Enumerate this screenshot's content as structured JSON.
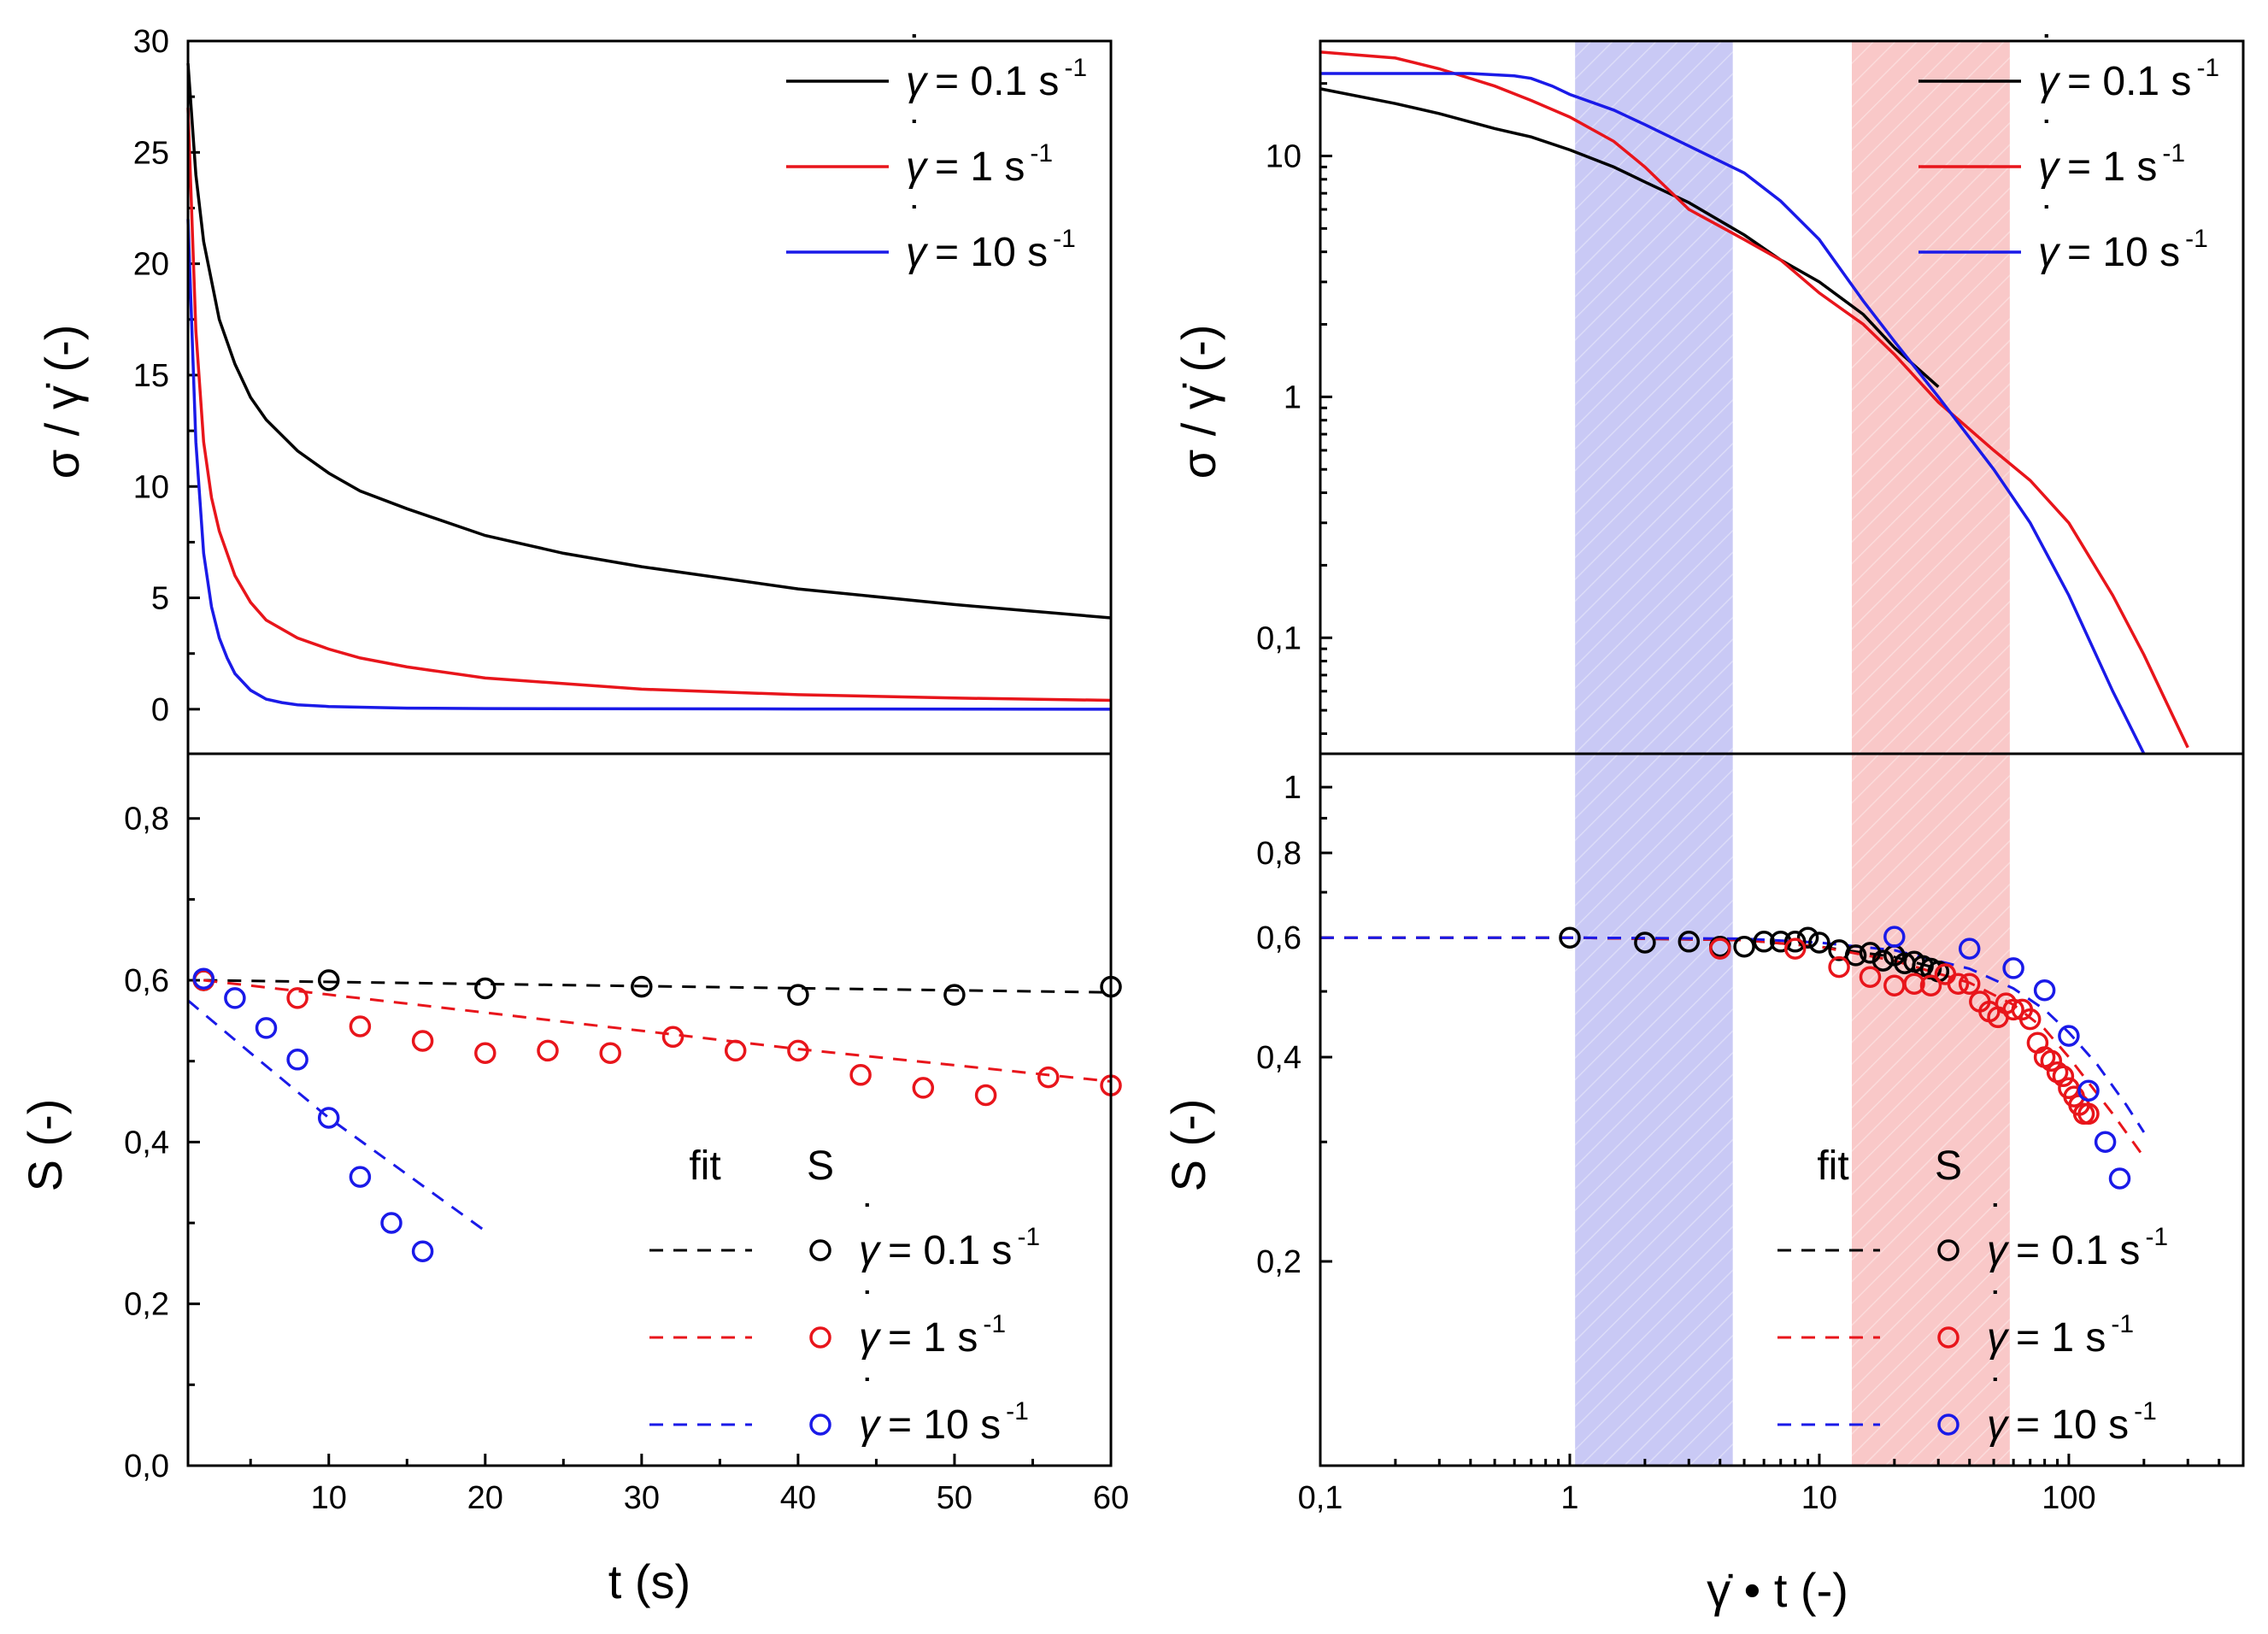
{
  "colors": {
    "black": "#000000",
    "red": "#e8151b",
    "blue": "#1a1ae8",
    "band_blue": "#c9c9f5",
    "band_red": "#f9c8c8"
  },
  "legend_labels": {
    "fit": "fit",
    "s": "S",
    "gdot": "γ",
    "dot": "˙",
    "l01": "= 0.1 s",
    "l1": "= 1 s",
    "l10": "= 10 s",
    "exp": "-1"
  },
  "chart_data": [
    {
      "id": "top-left",
      "type": "line",
      "xlabel": "t (s)",
      "ylabel": "σ / γ̇ (-)",
      "xlim": [
        1,
        60
      ],
      "ylim": [
        -2,
        30
      ],
      "xscale": "linear",
      "yscale": "linear",
      "yticks": [
        0,
        5,
        10,
        15,
        20,
        25,
        30
      ],
      "ytick_labels": [
        "0",
        "5",
        "10",
        "15",
        "20",
        "25",
        "30"
      ],
      "legend_position": "top-right",
      "series": [
        {
          "name": "γ̇ = 0.1 s-1",
          "color": "#000000",
          "x": [
            1,
            1.5,
            2,
            3,
            4,
            5,
            6,
            8,
            10,
            12,
            15,
            20,
            25,
            30,
            40,
            50,
            60
          ],
          "y": [
            29,
            24,
            21,
            17.5,
            15.5,
            14,
            13,
            11.6,
            10.6,
            9.8,
            9,
            7.8,
            7,
            6.4,
            5.4,
            4.7,
            4.1
          ]
        },
        {
          "name": "γ̇ = 1 s-1",
          "color": "#e8151b",
          "x": [
            1,
            1.5,
            2,
            2.5,
            3,
            4,
            5,
            6,
            8,
            10,
            12,
            15,
            20,
            30,
            40,
            50,
            60
          ],
          "y": [
            27,
            17,
            12,
            9.5,
            8,
            6,
            4.8,
            4,
            3.2,
            2.7,
            2.3,
            1.9,
            1.4,
            0.9,
            0.65,
            0.5,
            0.4
          ]
        },
        {
          "name": "γ̇ = 10 s-1",
          "color": "#1a1ae8",
          "x": [
            1,
            1.5,
            2,
            2.5,
            3,
            3.5,
            4,
            5,
            6,
            7,
            8,
            10,
            15,
            20,
            30,
            40,
            60
          ],
          "y": [
            22,
            12,
            7,
            4.6,
            3.2,
            2.3,
            1.6,
            0.85,
            0.45,
            0.3,
            0.2,
            0.12,
            0.05,
            0.03,
            0.02,
            0.01,
            0
          ]
        }
      ]
    },
    {
      "id": "top-right",
      "type": "line",
      "xlabel": "",
      "ylabel": "σ / γ̇ (-)",
      "xlim": [
        0.1,
        500
      ],
      "ylim": [
        0.033,
        30
      ],
      "xscale": "log",
      "yscale": "log",
      "yticks": [
        0.1,
        1,
        10
      ],
      "ytick_labels": [
        "0,1",
        "1",
        "10"
      ],
      "shaded_bands": [
        {
          "x0": 1.05,
          "x1": 4.5,
          "color": "blue"
        },
        {
          "x0": 13.5,
          "x1": 58,
          "color": "red"
        }
      ],
      "legend_position": "top-right",
      "series": [
        {
          "name": "γ̇ = 0.1 s-1",
          "color": "#000000",
          "x": [
            0.1,
            0.2,
            0.3,
            0.5,
            0.7,
            1,
            1.5,
            2,
            3,
            5,
            7,
            10,
            15,
            20,
            30
          ],
          "y": [
            19,
            16.5,
            15,
            13,
            12,
            10.6,
            9,
            7.8,
            6.4,
            4.7,
            3.7,
            3,
            2.2,
            1.6,
            1.1
          ]
        },
        {
          "name": "γ̇ = 1 s-1",
          "color": "#e8151b",
          "x": [
            0.1,
            0.2,
            0.3,
            0.5,
            0.7,
            1,
            1.5,
            2,
            3,
            5,
            7,
            10,
            15,
            20,
            30,
            50,
            70,
            100,
            150,
            200,
            300
          ],
          "y": [
            27,
            25.5,
            23,
            19.5,
            17,
            14.5,
            11.5,
            9,
            6,
            4.5,
            3.7,
            2.7,
            2,
            1.5,
            0.95,
            0.6,
            0.45,
            0.3,
            0.15,
            0.085,
            0.035
          ]
        },
        {
          "name": "γ̇ = 10 s-1",
          "color": "#1a1ae8",
          "x": [
            0.1,
            0.2,
            0.4,
            0.6,
            0.7,
            0.85,
            1,
            1.5,
            2,
            3,
            5,
            7,
            10,
            15,
            20,
            30,
            50,
            70,
            100,
            150,
            200
          ],
          "y": [
            22,
            22,
            22,
            21.5,
            21,
            19.5,
            18,
            15.5,
            13.5,
            11,
            8.5,
            6.5,
            4.5,
            2.5,
            1.7,
            1,
            0.5,
            0.3,
            0.15,
            0.06,
            0.033
          ]
        }
      ]
    },
    {
      "id": "bottom-left",
      "type": "scatter",
      "xlabel": "t (s)",
      "ylabel": "S (-)",
      "xlim": [
        1,
        60
      ],
      "ylim": [
        0,
        0.88
      ],
      "xscale": "linear",
      "yscale": "linear",
      "xticks": [
        10,
        20,
        30,
        40,
        50,
        60
      ],
      "xtick_labels": [
        "10",
        "20",
        "30",
        "40",
        "50",
        "60"
      ],
      "yticks": [
        0,
        0.2,
        0.4,
        0.6,
        0.8
      ],
      "ytick_labels": [
        "0,0",
        "0,2",
        "0,4",
        "0,6",
        "0,8"
      ],
      "legend_position": "bottom-right",
      "fits": [
        {
          "name": "fit γ̇ = 0.1 s-1",
          "color": "#000000",
          "x": [
            2,
            60
          ],
          "y": [
            0.6,
            0.585
          ]
        },
        {
          "name": "fit γ̇ = 1 s-1",
          "color": "#e8151b",
          "x": [
            2,
            20,
            40,
            60
          ],
          "y": [
            0.6,
            0.56,
            0.515,
            0.475
          ]
        },
        {
          "name": "fit γ̇ = 10 s-1",
          "color": "#1a1ae8",
          "x": [
            1,
            5,
            10,
            15,
            20
          ],
          "y": [
            0.575,
            0.51,
            0.43,
            0.36,
            0.29
          ]
        }
      ],
      "points": [
        {
          "name": "S γ̇ = 0.1 s-1",
          "color": "#000000",
          "x": [
            2,
            10,
            20,
            30,
            40,
            50,
            60
          ],
          "y": [
            0.6,
            0.6,
            0.59,
            0.592,
            0.582,
            0.582,
            0.592
          ]
        },
        {
          "name": "S γ̇ = 1 s-1",
          "color": "#e8151b",
          "x": [
            2,
            8,
            12,
            16,
            20,
            24,
            28,
            32,
            36,
            40,
            44,
            48,
            52,
            56,
            60
          ],
          "y": [
            0.6,
            0.578,
            0.543,
            0.525,
            0.51,
            0.513,
            0.51,
            0.53,
            0.513,
            0.513,
            0.483,
            0.467,
            0.458,
            0.48,
            0.47
          ]
        },
        {
          "name": "S γ̇ = 10 s-1",
          "color": "#1a1ae8",
          "x": [
            2,
            4,
            6,
            8,
            10,
            12,
            14,
            16
          ],
          "y": [
            0.602,
            0.578,
            0.541,
            0.502,
            0.43,
            0.357,
            0.3,
            0.265
          ]
        }
      ]
    },
    {
      "id": "bottom-right",
      "type": "scatter",
      "xlabel": "γ̇ • t (-)",
      "ylabel": "S (-)",
      "xlim": [
        0.1,
        500
      ],
      "ylim": [
        0.1,
        1.12
      ],
      "xscale": "log",
      "yscale": "log",
      "xticks": [
        0.1,
        1,
        10,
        100
      ],
      "xtick_labels": [
        "0,1",
        "1",
        "10",
        "100"
      ],
      "yticks": [
        0.2,
        0.4,
        0.6,
        0.8,
        1
      ],
      "ytick_labels": [
        "0,2",
        "0,4",
        "0,6",
        "0,8",
        "1"
      ],
      "shaded_bands": [
        {
          "x0": 1.05,
          "x1": 4.5,
          "color": "blue"
        },
        {
          "x0": 13.5,
          "x1": 58,
          "color": "red"
        }
      ],
      "legend_position": "bottom-right",
      "fits": [
        {
          "name": "fit γ̇ = 0.1 s-1",
          "color": "#000000",
          "x": [
            0.1,
            1,
            5,
            10,
            20,
            30
          ],
          "y": [
            0.6,
            0.6,
            0.595,
            0.582,
            0.562,
            0.54
          ]
        },
        {
          "name": "fit γ̇ = 1 s-1",
          "color": "#e8151b",
          "x": [
            0.1,
            1,
            5,
            10,
            20,
            40,
            60,
            80,
            100,
            150,
            200
          ],
          "y": [
            0.6,
            0.6,
            0.595,
            0.582,
            0.555,
            0.515,
            0.478,
            0.44,
            0.4,
            0.33,
            0.285
          ]
        },
        {
          "name": "fit γ̇ = 10 s-1",
          "color": "#1a1ae8",
          "x": [
            0.1,
            1,
            5,
            10,
            20,
            40,
            60,
            80,
            100,
            130,
            170,
            200
          ],
          "y": [
            0.6,
            0.6,
            0.598,
            0.59,
            0.575,
            0.54,
            0.505,
            0.47,
            0.435,
            0.39,
            0.34,
            0.31
          ]
        }
      ],
      "points": [
        {
          "name": "S γ̇ = 0.1 s-1",
          "color": "#000000",
          "x": [
            1,
            2,
            3,
            4,
            5,
            6,
            7,
            8,
            9,
            10,
            12,
            14,
            16,
            18,
            20,
            22,
            24,
            26,
            28,
            30
          ],
          "y": [
            0.6,
            0.59,
            0.592,
            0.582,
            0.582,
            0.592,
            0.592,
            0.592,
            0.6,
            0.59,
            0.575,
            0.565,
            0.57,
            0.555,
            0.565,
            0.55,
            0.553,
            0.545,
            0.54,
            0.535
          ]
        },
        {
          "name": "S γ̇ = 1 s-1",
          "color": "#e8151b",
          "x": [
            4,
            8,
            12,
            16,
            20,
            24,
            28,
            32,
            36,
            40,
            44,
            48,
            52,
            56,
            60,
            65,
            70,
            75,
            80,
            85,
            90,
            95,
            100,
            105,
            110,
            115,
            120
          ],
          "y": [
            0.578,
            0.578,
            0.543,
            0.525,
            0.51,
            0.513,
            0.51,
            0.53,
            0.513,
            0.513,
            0.483,
            0.467,
            0.458,
            0.48,
            0.47,
            0.47,
            0.455,
            0.42,
            0.4,
            0.395,
            0.38,
            0.375,
            0.36,
            0.35,
            0.34,
            0.33,
            0.33
          ]
        },
        {
          "name": "S γ̇ = 10 s-1",
          "color": "#1a1ae8",
          "x": [
            20,
            40,
            60,
            80,
            100,
            120,
            140,
            160
          ],
          "y": [
            0.602,
            0.578,
            0.541,
            0.502,
            0.43,
            0.357,
            0.3,
            0.265
          ]
        }
      ]
    }
  ]
}
